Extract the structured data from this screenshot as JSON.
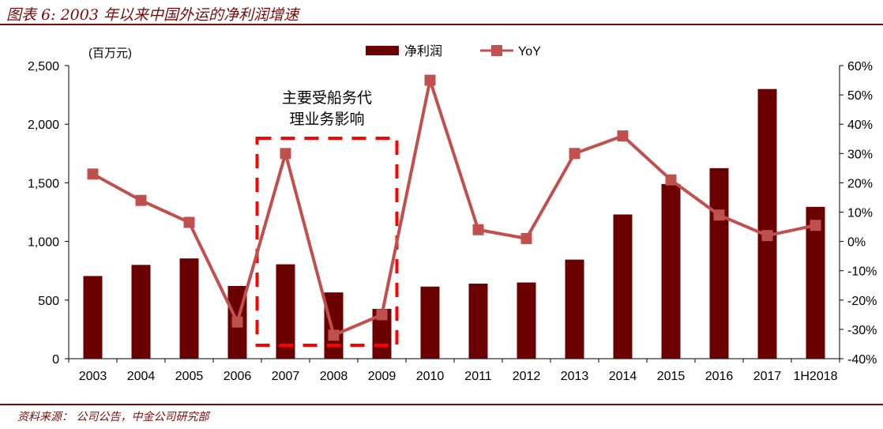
{
  "header": {
    "title": "图表 6: 2003 年以来中国外运的净利润增速"
  },
  "footer": {
    "source": "资料来源：  公司公告，中金公司研究部"
  },
  "colors": {
    "bar": "#6b0000",
    "line": "#c0504d",
    "box": "#ff0000",
    "frame": "#7a0b0b"
  },
  "chart_data": {
    "type": "bar",
    "title": "2003 年以来中国外运的净利润增速",
    "categories": [
      "2003",
      "2004",
      "2005",
      "2006",
      "2007",
      "2008",
      "2009",
      "2010",
      "2011",
      "2012",
      "2013",
      "2014",
      "2015",
      "2016",
      "2017",
      "1H2018"
    ],
    "unit_label": "(百万元)",
    "series": [
      {
        "name": "净利润",
        "type": "bar",
        "axis": "left",
        "values": [
          705,
          800,
          855,
          620,
          805,
          565,
          425,
          615,
          640,
          650,
          845,
          1230,
          1490,
          1625,
          2300,
          1295
        ]
      },
      {
        "name": "YoY",
        "type": "line",
        "axis": "right",
        "unit": "%",
        "values": [
          23,
          14,
          6.5,
          -27.5,
          30,
          -32,
          -25,
          55,
          4,
          1,
          30,
          36,
          21,
          9,
          2,
          5.5
        ]
      }
    ],
    "y_left": {
      "min": 0,
      "max": 2500,
      "ticks": [
        0,
        500,
        1000,
        1500,
        2000,
        2500
      ],
      "tick_labels": [
        "0",
        "500",
        "1,000",
        "1,500",
        "2,000",
        "2,500"
      ]
    },
    "y_right": {
      "min": -40,
      "max": 60,
      "ticks": [
        -40,
        -30,
        -20,
        -10,
        0,
        10,
        20,
        30,
        40,
        50,
        60
      ],
      "tick_labels": [
        "-40%",
        "-30%",
        "-20%",
        "-10%",
        "0%",
        "10%",
        "20%",
        "30%",
        "40%",
        "50%",
        "60%"
      ]
    },
    "legend": {
      "placement": "top",
      "items": [
        "净利润",
        "YoY"
      ]
    },
    "annotation": {
      "lines": [
        "主要受船务代",
        "理业务影响"
      ],
      "highlight_categories": [
        "2007",
        "2009"
      ]
    },
    "grid": false
  }
}
